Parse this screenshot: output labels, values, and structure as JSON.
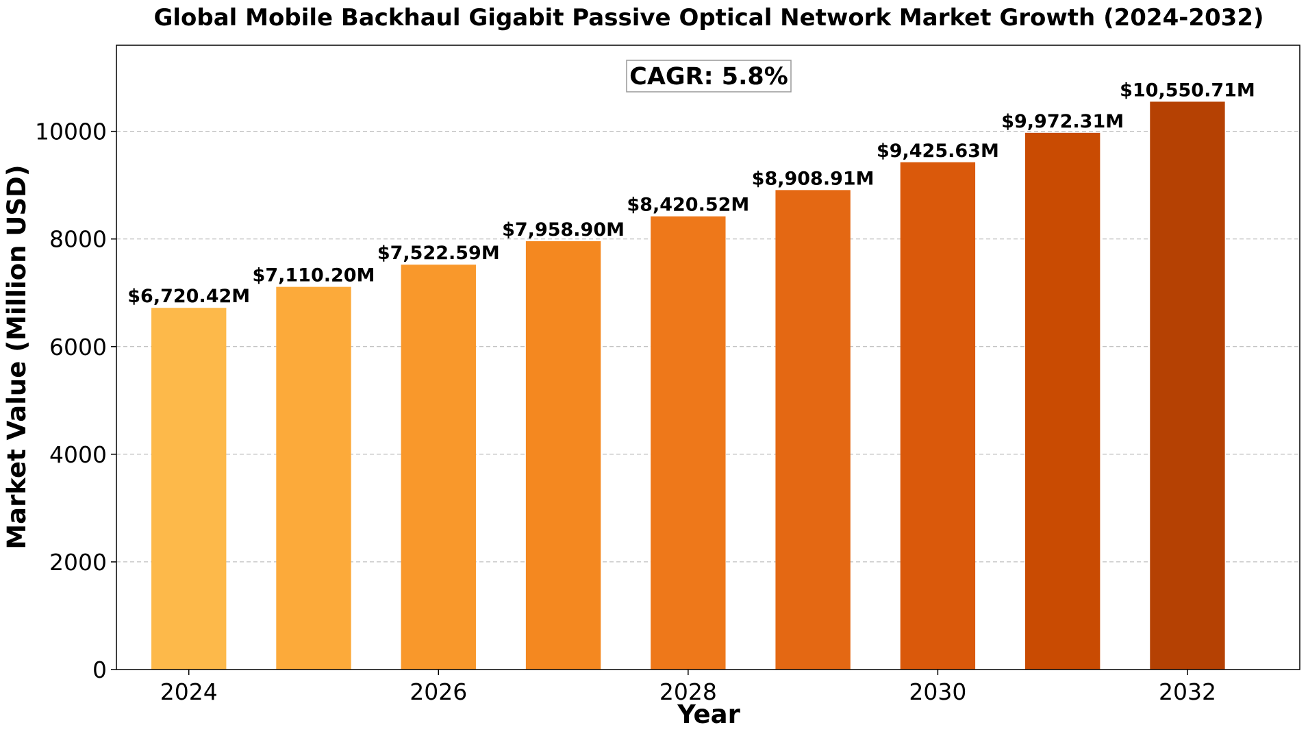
{
  "chart_data": {
    "type": "bar",
    "title": "Global Mobile Backhaul Gigabit Passive Optical Network Market Growth (2024-2032)",
    "xlabel": "Year",
    "ylabel": "Market Value (Million USD)",
    "categories": [
      2024,
      2025,
      2026,
      2027,
      2028,
      2029,
      2030,
      2031,
      2032
    ],
    "values": [
      6720.42,
      7110.2,
      7522.59,
      7958.9,
      8420.52,
      8908.91,
      9425.63,
      9972.31,
      10550.71
    ],
    "data_labels": [
      "$6,720.42M",
      "$7,110.20M",
      "$7,522.59M",
      "$7,958.90M",
      "$8,420.52M",
      "$8,908.91M",
      "$9,425.63M",
      "$9,972.31M",
      "$10,550.71M"
    ],
    "bar_colors": [
      "#fdb94a",
      "#fcaa3a",
      "#f9982b",
      "#f48820",
      "#ee781a",
      "#e46813",
      "#da590b",
      "#c94b02",
      "#b54103"
    ],
    "xticks": [
      2024,
      2026,
      2028,
      2030,
      2032
    ],
    "xtick_labels": [
      "2024",
      "2026",
      "2028",
      "2030",
      "2032"
    ],
    "xlim": [
      2023.42,
      2032.9
    ],
    "yticks": [
      0,
      2000,
      4000,
      6000,
      8000,
      10000
    ],
    "ytick_labels": [
      "0",
      "2000",
      "4000",
      "6000",
      "8000",
      "10000"
    ],
    "ylim": [
      0,
      11600
    ],
    "grid": "y-dashed",
    "annotation": "CAGR: 5.8%"
  }
}
